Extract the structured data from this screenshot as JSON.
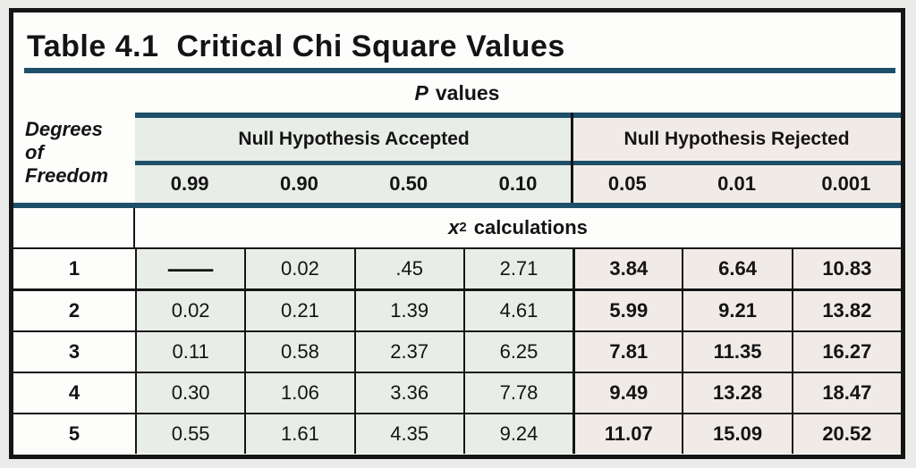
{
  "title": "Table 4.1  Critical Chi Square Values",
  "p_values": {
    "symbol": "P",
    "label": "values"
  },
  "row_header": {
    "line1": "Degrees",
    "line2": "of",
    "line3": "Freedom"
  },
  "sections": {
    "accepted": {
      "label": "Null Hypothesis Accepted",
      "p_columns": [
        "0.99",
        "0.90",
        "0.50",
        "0.10"
      ]
    },
    "rejected": {
      "label": "Null Hypothesis Rejected",
      "p_columns": [
        "0.05",
        "0.01",
        "0.001"
      ]
    }
  },
  "calc_header": {
    "symbol": "x",
    "superscript": "2",
    "label": "calculations"
  },
  "table": {
    "rows": [
      {
        "df": "1",
        "accepted": [
          "—",
          "0.02",
          ".45",
          "2.71"
        ],
        "rejected": [
          "3.84",
          "6.64",
          "10.83"
        ]
      },
      {
        "df": "2",
        "accepted": [
          "0.02",
          "0.21",
          "1.39",
          "4.61"
        ],
        "rejected": [
          "5.99",
          "9.21",
          "13.82"
        ]
      },
      {
        "df": "3",
        "accepted": [
          "0.11",
          "0.58",
          "2.37",
          "6.25"
        ],
        "rejected": [
          "7.81",
          "11.35",
          "16.27"
        ]
      },
      {
        "df": "4",
        "accepted": [
          "0.30",
          "1.06",
          "3.36",
          "7.78"
        ],
        "rejected": [
          "9.49",
          "13.28",
          "18.47"
        ]
      },
      {
        "df": "5",
        "accepted": [
          "0.55",
          "1.61",
          "4.35",
          "9.24"
        ],
        "rejected": [
          "11.07",
          "15.09",
          "20.52"
        ]
      }
    ]
  },
  "chart_data": {
    "type": "table",
    "title": "Table 4.1  Critical Chi Square Values",
    "row_header": "Degrees of Freedom",
    "column_groups": [
      "Null Hypothesis Accepted",
      "Null Hypothesis Rejected"
    ],
    "columns": [
      "0.99",
      "0.90",
      "0.50",
      "0.10",
      "0.05",
      "0.01",
      "0.001"
    ],
    "rows": [
      {
        "df": 1,
        "values": [
          null,
          0.02,
          0.45,
          2.71,
          3.84,
          6.64,
          10.83
        ]
      },
      {
        "df": 2,
        "values": [
          0.02,
          0.21,
          1.39,
          4.61,
          5.99,
          9.21,
          13.82
        ]
      },
      {
        "df": 3,
        "values": [
          0.11,
          0.58,
          2.37,
          6.25,
          7.81,
          11.35,
          16.27
        ]
      },
      {
        "df": 4,
        "values": [
          0.3,
          1.06,
          3.36,
          7.78,
          9.49,
          13.28,
          18.47
        ]
      },
      {
        "df": 5,
        "values": [
          0.55,
          1.61,
          4.35,
          9.24,
          11.07,
          15.09,
          20.52
        ]
      }
    ]
  },
  "colors": {
    "teal_rule": "#1d4f69",
    "accepted_bg": "#e9ede8",
    "rejected_bg": "#f1ebe7",
    "border": "#151515"
  }
}
